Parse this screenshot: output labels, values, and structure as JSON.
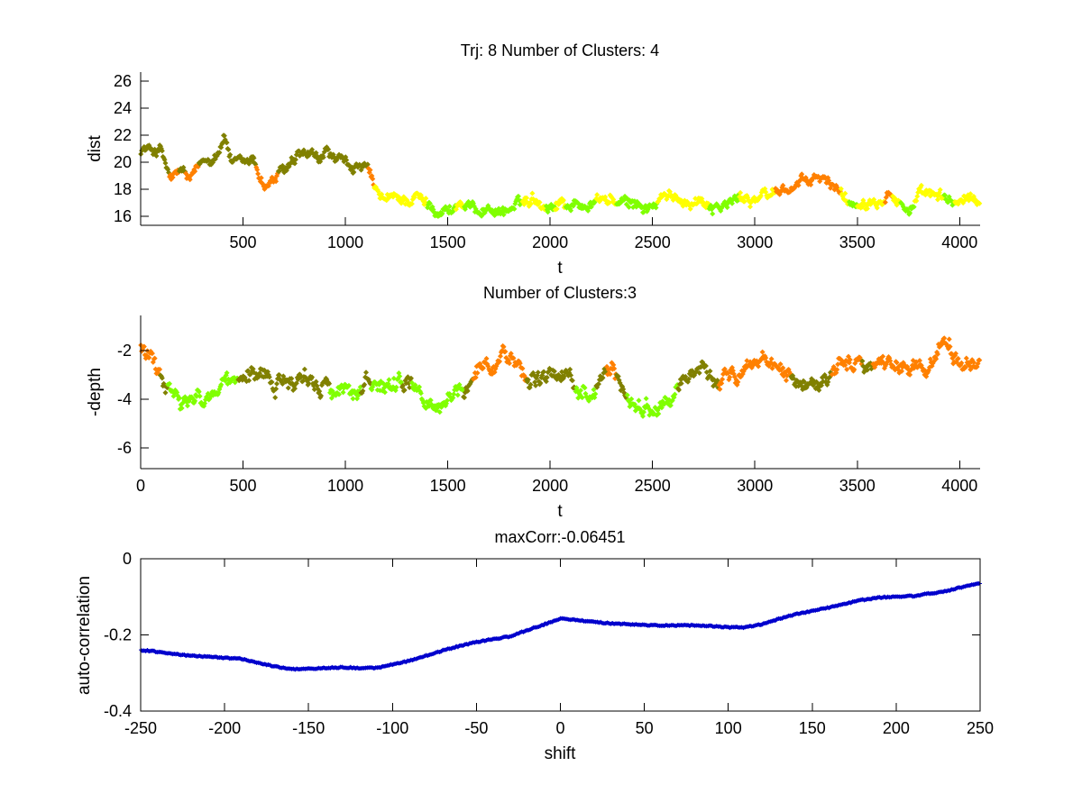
{
  "chart_data": [
    {
      "type": "scatter",
      "title": "Trj: 8 Number of Clusters: 4",
      "xlabel": "t",
      "ylabel": "dist",
      "xlim": [
        0,
        4100
      ],
      "ylim": [
        15.33,
        26.67
      ],
      "xticks": [
        500,
        1000,
        1500,
        2000,
        2500,
        3000,
        3500,
        4000
      ],
      "xtick_labels": [
        "500",
        "1000",
        "1500",
        "2000",
        "2500",
        "3000",
        "3500",
        "4000"
      ],
      "yticks": [
        16,
        18,
        20,
        22,
        24,
        26
      ],
      "ytick_labels": [
        "16",
        "18",
        "20",
        "22",
        "24",
        "26"
      ],
      "box": false,
      "grid": false,
      "clusters": [
        {
          "id": "A",
          "color": "#808000"
        },
        {
          "id": "B",
          "color": "#ff8000"
        },
        {
          "id": "C",
          "color": "#ffff00"
        },
        {
          "id": "D",
          "color": "#80ff00"
        }
      ],
      "note": "Trajectory sampled as anchor points [t, value, cluster]; dense markers are drawn around them",
      "anchors": [
        [
          0,
          21.0,
          "A"
        ],
        [
          50,
          20.9,
          "A"
        ],
        [
          100,
          20.9,
          "A"
        ],
        [
          125,
          19.6,
          "A"
        ],
        [
          150,
          18.6,
          "B"
        ],
        [
          175,
          18.9,
          "B"
        ],
        [
          200,
          19.4,
          "A"
        ],
        [
          240,
          18.6,
          "B"
        ],
        [
          270,
          19.1,
          "B"
        ],
        [
          300,
          19.9,
          "A"
        ],
        [
          350,
          20.4,
          "A"
        ],
        [
          380,
          21.0,
          "A"
        ],
        [
          410,
          22.0,
          "A"
        ],
        [
          450,
          19.8,
          "A"
        ],
        [
          500,
          19.7,
          "A"
        ],
        [
          550,
          20.1,
          "A"
        ],
        [
          580,
          19.0,
          "B"
        ],
        [
          610,
          18.2,
          "B"
        ],
        [
          650,
          18.7,
          "B"
        ],
        [
          690,
          19.2,
          "A"
        ],
        [
          740,
          19.7,
          "A"
        ],
        [
          780,
          20.3,
          "A"
        ],
        [
          820,
          20.4,
          "A"
        ],
        [
          870,
          19.9,
          "A"
        ],
        [
          910,
          20.8,
          "A"
        ],
        [
          950,
          20.1,
          "A"
        ],
        [
          1000,
          19.7,
          "A"
        ],
        [
          1050,
          19.7,
          "A"
        ],
        [
          1100,
          19.4,
          "A"
        ],
        [
          1125,
          18.8,
          "B"
        ],
        [
          1150,
          17.6,
          "C"
        ],
        [
          1200,
          17.1,
          "C"
        ],
        [
          1250,
          17.3,
          "C"
        ],
        [
          1300,
          17.2,
          "C"
        ],
        [
          1350,
          17.5,
          "C"
        ],
        [
          1380,
          17.0,
          "C"
        ],
        [
          1420,
          16.8,
          "D"
        ],
        [
          1470,
          16.5,
          "D"
        ],
        [
          1520,
          16.5,
          "D"
        ],
        [
          1560,
          17.0,
          "C"
        ],
        [
          1600,
          16.6,
          "D"
        ],
        [
          1650,
          16.5,
          "D"
        ],
        [
          1700,
          16.6,
          "D"
        ],
        [
          1750,
          16.4,
          "D"
        ],
        [
          1800,
          16.5,
          "D"
        ],
        [
          1850,
          16.8,
          "D"
        ],
        [
          1880,
          17.1,
          "C"
        ],
        [
          1920,
          17.5,
          "C"
        ],
        [
          1960,
          17.0,
          "C"
        ],
        [
          2000,
          16.8,
          "D"
        ],
        [
          2050,
          17.1,
          "C"
        ],
        [
          2100,
          16.9,
          "D"
        ],
        [
          2150,
          16.8,
          "D"
        ],
        [
          2200,
          16.9,
          "D"
        ],
        [
          2250,
          17.3,
          "C"
        ],
        [
          2300,
          17.2,
          "C"
        ],
        [
          2350,
          16.8,
          "D"
        ],
        [
          2400,
          16.9,
          "D"
        ],
        [
          2450,
          16.8,
          "D"
        ],
        [
          2500,
          16.6,
          "D"
        ],
        [
          2550,
          17.3,
          "C"
        ],
        [
          2600,
          17.3,
          "C"
        ],
        [
          2650,
          17.3,
          "C"
        ],
        [
          2700,
          17.2,
          "C"
        ],
        [
          2750,
          17.2,
          "C"
        ],
        [
          2800,
          16.9,
          "D"
        ],
        [
          2850,
          16.8,
          "D"
        ],
        [
          2900,
          17.1,
          "D"
        ],
        [
          2950,
          17.4,
          "C"
        ],
        [
          3000,
          17.4,
          "C"
        ],
        [
          3040,
          17.4,
          "C"
        ],
        [
          3080,
          17.6,
          "C"
        ],
        [
          3120,
          18.0,
          "B"
        ],
        [
          3170,
          18.1,
          "B"
        ],
        [
          3220,
          18.3,
          "B"
        ],
        [
          3270,
          18.6,
          "B"
        ],
        [
          3310,
          18.8,
          "B"
        ],
        [
          3360,
          18.4,
          "B"
        ],
        [
          3400,
          18.2,
          "B"
        ],
        [
          3440,
          17.4,
          "C"
        ],
        [
          3480,
          16.9,
          "D"
        ],
        [
          3520,
          17.3,
          "C"
        ],
        [
          3570,
          17.4,
          "C"
        ],
        [
          3620,
          17.6,
          "C"
        ],
        [
          3650,
          18.3,
          "B"
        ],
        [
          3690,
          17.3,
          "C"
        ],
        [
          3730,
          16.7,
          "D"
        ],
        [
          3760,
          16.6,
          "D"
        ],
        [
          3800,
          17.4,
          "C"
        ],
        [
          3850,
          17.4,
          "C"
        ],
        [
          3900,
          17.3,
          "C"
        ],
        [
          3950,
          17.0,
          "D"
        ],
        [
          4000,
          17.1,
          "C"
        ],
        [
          4050,
          17.1,
          "C"
        ],
        [
          4100,
          17.3,
          "C"
        ]
      ]
    },
    {
      "type": "scatter",
      "title": "Number of Clusters:3",
      "xlabel": "t",
      "ylabel": "-depth",
      "xlim": [
        0,
        4100
      ],
      "ylim": [
        -6.85,
        -0.55
      ],
      "xticks": [
        0,
        500,
        1000,
        1500,
        2000,
        2500,
        3000,
        3500,
        4000
      ],
      "xtick_labels": [
        "0",
        "500",
        "1000",
        "1500",
        "2000",
        "2500",
        "3000",
        "3500",
        "4000"
      ],
      "yticks": [
        -6,
        -4,
        -2
      ],
      "ytick_labels": [
        "-6",
        "-4",
        "-2"
      ],
      "box": false,
      "grid": false,
      "clusters": [
        {
          "id": "A",
          "color": "#808000"
        },
        {
          "id": "B",
          "color": "#ff8000"
        },
        {
          "id": "D",
          "color": "#80ff00"
        }
      ],
      "anchors": [
        [
          0,
          -1.8,
          "B"
        ],
        [
          40,
          -2.3,
          "B"
        ],
        [
          80,
          -2.8,
          "B"
        ],
        [
          110,
          -3.4,
          "A"
        ],
        [
          150,
          -3.8,
          "D"
        ],
        [
          200,
          -4.3,
          "D"
        ],
        [
          250,
          -4.2,
          "D"
        ],
        [
          300,
          -4.0,
          "D"
        ],
        [
          350,
          -3.8,
          "D"
        ],
        [
          400,
          -3.6,
          "D"
        ],
        [
          450,
          -3.6,
          "D"
        ],
        [
          500,
          -3.3,
          "A"
        ],
        [
          550,
          -3.2,
          "A"
        ],
        [
          600,
          -3.1,
          "A"
        ],
        [
          650,
          -3.3,
          "A"
        ],
        [
          700,
          -3.2,
          "A"
        ],
        [
          750,
          -3.1,
          "A"
        ],
        [
          800,
          -3.0,
          "A"
        ],
        [
          850,
          -3.2,
          "A"
        ],
        [
          900,
          -3.3,
          "A"
        ],
        [
          950,
          -3.6,
          "D"
        ],
        [
          1000,
          -3.6,
          "D"
        ],
        [
          1050,
          -3.8,
          "D"
        ],
        [
          1100,
          -3.3,
          "A"
        ],
        [
          1150,
          -3.8,
          "D"
        ],
        [
          1200,
          -3.7,
          "D"
        ],
        [
          1250,
          -3.6,
          "D"
        ],
        [
          1300,
          -3.3,
          "A"
        ],
        [
          1350,
          -3.8,
          "D"
        ],
        [
          1400,
          -4.1,
          "D"
        ],
        [
          1450,
          -4.4,
          "D"
        ],
        [
          1500,
          -4.0,
          "D"
        ],
        [
          1550,
          -3.7,
          "D"
        ],
        [
          1600,
          -3.3,
          "A"
        ],
        [
          1650,
          -2.7,
          "B"
        ],
        [
          1700,
          -2.5,
          "B"
        ],
        [
          1750,
          -2.3,
          "B"
        ],
        [
          1780,
          -1.9,
          "B"
        ],
        [
          1820,
          -2.5,
          "B"
        ],
        [
          1870,
          -2.8,
          "B"
        ],
        [
          1900,
          -3.1,
          "A"
        ],
        [
          1950,
          -3.2,
          "A"
        ],
        [
          2000,
          -3.1,
          "A"
        ],
        [
          2050,
          -3.2,
          "A"
        ],
        [
          2100,
          -3.0,
          "A"
        ],
        [
          2150,
          -3.4,
          "D"
        ],
        [
          2200,
          -3.6,
          "D"
        ],
        [
          2250,
          -3.3,
          "A"
        ],
        [
          2300,
          -2.8,
          "B"
        ],
        [
          2350,
          -3.4,
          "A"
        ],
        [
          2400,
          -4.0,
          "D"
        ],
        [
          2450,
          -4.5,
          "D"
        ],
        [
          2500,
          -4.6,
          "D"
        ],
        [
          2550,
          -4.0,
          "D"
        ],
        [
          2600,
          -3.6,
          "D"
        ],
        [
          2650,
          -3.3,
          "A"
        ],
        [
          2700,
          -3.2,
          "A"
        ],
        [
          2750,
          -3.1,
          "A"
        ],
        [
          2800,
          -3.1,
          "A"
        ],
        [
          2850,
          -2.8,
          "B"
        ],
        [
          2900,
          -2.9,
          "B"
        ],
        [
          2950,
          -2.8,
          "B"
        ],
        [
          3000,
          -2.6,
          "B"
        ],
        [
          3050,
          -2.6,
          "B"
        ],
        [
          3100,
          -2.4,
          "B"
        ],
        [
          3150,
          -2.8,
          "B"
        ],
        [
          3200,
          -3.1,
          "A"
        ],
        [
          3250,
          -3.2,
          "A"
        ],
        [
          3300,
          -3.4,
          "A"
        ],
        [
          3350,
          -3.3,
          "A"
        ],
        [
          3400,
          -2.7,
          "B"
        ],
        [
          3450,
          -2.3,
          "B"
        ],
        [
          3500,
          -2.6,
          "B"
        ],
        [
          3550,
          -3.0,
          "A"
        ],
        [
          3600,
          -2.7,
          "B"
        ],
        [
          3650,
          -2.6,
          "B"
        ],
        [
          3700,
          -2.6,
          "B"
        ],
        [
          3750,
          -2.7,
          "B"
        ],
        [
          3800,
          -2.5,
          "B"
        ],
        [
          3850,
          -2.8,
          "B"
        ],
        [
          3900,
          -1.6,
          "B"
        ],
        [
          3950,
          -2.0,
          "B"
        ],
        [
          4000,
          -2.5,
          "B"
        ],
        [
          4050,
          -2.7,
          "B"
        ],
        [
          4100,
          -2.6,
          "B"
        ]
      ]
    },
    {
      "type": "line",
      "title": "maxCorr:-0.06451",
      "xlabel": "shift",
      "ylabel": "auto-correlation",
      "xlim": [
        -250,
        250
      ],
      "ylim": [
        -0.4,
        0
      ],
      "xticks": [
        -250,
        -200,
        -150,
        -100,
        -50,
        0,
        50,
        100,
        150,
        200,
        250
      ],
      "xtick_labels": [
        "-250",
        "-200",
        "-150",
        "-100",
        "-50",
        "0",
        "50",
        "100",
        "150",
        "200",
        "250"
      ],
      "yticks": [
        -0.4,
        -0.2,
        0
      ],
      "ytick_labels": [
        "-0.4",
        "-0.2",
        "0"
      ],
      "box": true,
      "grid": false,
      "color": "#0000cc",
      "x": [
        -250,
        -240,
        -230,
        -220,
        -210,
        -200,
        -190,
        -180,
        -170,
        -160,
        -150,
        -140,
        -130,
        -120,
        -110,
        -100,
        -90,
        -80,
        -70,
        -60,
        -50,
        -40,
        -30,
        -20,
        -10,
        0,
        10,
        20,
        30,
        40,
        50,
        60,
        70,
        80,
        90,
        100,
        110,
        120,
        130,
        140,
        150,
        160,
        170,
        180,
        190,
        200,
        210,
        220,
        230,
        240,
        250
      ],
      "y": [
        -0.24,
        -0.244,
        -0.25,
        -0.255,
        -0.257,
        -0.26,
        -0.263,
        -0.273,
        -0.283,
        -0.29,
        -0.289,
        -0.287,
        -0.285,
        -0.287,
        -0.287,
        -0.278,
        -0.268,
        -0.255,
        -0.241,
        -0.229,
        -0.219,
        -0.211,
        -0.204,
        -0.188,
        -0.173,
        -0.157,
        -0.161,
        -0.166,
        -0.17,
        -0.172,
        -0.174,
        -0.175,
        -0.175,
        -0.175,
        -0.177,
        -0.18,
        -0.18,
        -0.172,
        -0.158,
        -0.146,
        -0.137,
        -0.128,
        -0.118,
        -0.108,
        -0.102,
        -0.099,
        -0.098,
        -0.091,
        -0.085,
        -0.073,
        -0.065
      ]
    }
  ]
}
